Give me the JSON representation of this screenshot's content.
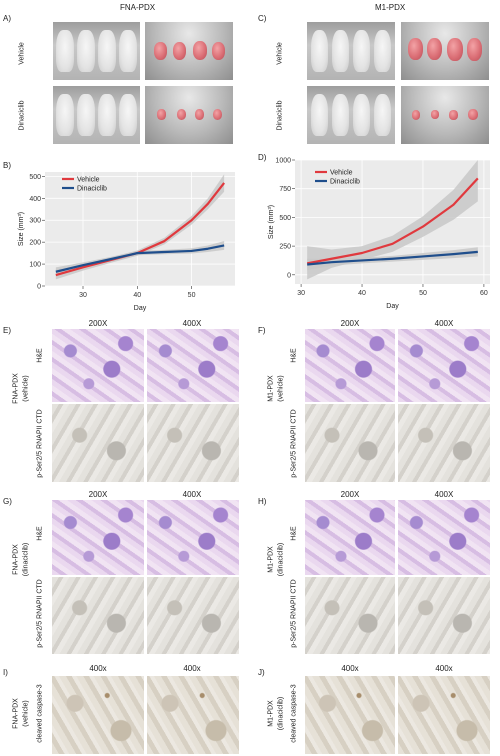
{
  "panels": {
    "A": "A)",
    "B": "B)",
    "C": "C)",
    "D": "D)",
    "E": "E)",
    "F": "F)",
    "G": "G)",
    "H": "H)",
    "I": "I)",
    "J": "J)"
  },
  "titles": {
    "left": "FNA-PDX",
    "right": "M1-PDX"
  },
  "row_labels": {
    "vehicle": "Vehicle",
    "dinaciclib": "Dinaciclib"
  },
  "mag": {
    "m200": "200X",
    "m400": "400X",
    "m400_lower": "400x"
  },
  "stain_labels": {
    "he": "H&E",
    "rnapii": "p-Ser2/5 RNAPII CTD",
    "caspase": "cleaved caspase-3",
    "fna_vehicle": "FNA-PDX",
    "fna_vehicle_sub": "(vehicle)",
    "m1_vehicle": "M1-PDX",
    "m1_vehicle_sub": "(vehicle)",
    "fna_dina_sub": "(dinaciclib)",
    "m1_dina_sub": "(dinaciclib)"
  },
  "colors": {
    "vehicle": "#e0393e",
    "dinaciclib": "#1f4e8c",
    "band": "#c8c8c8"
  },
  "chart_data": [
    {
      "type": "line",
      "panel": "B",
      "xlabel": "Day",
      "ylabel": "Size (mm³)",
      "xlim": [
        23,
        58
      ],
      "ylim": [
        0,
        520
      ],
      "xticks": [
        30,
        40,
        50
      ],
      "yticks": [
        0,
        100,
        200,
        300,
        400,
        500
      ],
      "legend_position": "top-left",
      "grid": true,
      "series": [
        {
          "name": "Vehicle",
          "color": "#e0393e",
          "x": [
            25,
            30,
            35,
            40,
            45,
            50,
            53,
            56
          ],
          "y": [
            50,
            85,
            118,
            150,
            205,
            300,
            375,
            470
          ],
          "band": [
            [
              30,
              75
            ],
            [
              70,
              100
            ],
            [
              105,
              130
            ],
            [
              138,
              162
            ],
            [
              190,
              220
            ],
            [
              280,
              320
            ],
            [
              350,
              400
            ],
            [
              430,
              510
            ]
          ]
        },
        {
          "name": "Dinaciclib",
          "color": "#1f4e8c",
          "x": [
            25,
            30,
            35,
            40,
            45,
            50,
            53,
            56
          ],
          "y": [
            65,
            95,
            122,
            150,
            155,
            160,
            170,
            185
          ],
          "band": [
            [
              45,
              85
            ],
            [
              82,
              108
            ],
            [
              112,
              132
            ],
            [
              140,
              160
            ],
            [
              145,
              165
            ],
            [
              148,
              172
            ],
            [
              155,
              185
            ],
            [
              165,
              205
            ]
          ]
        }
      ]
    },
    {
      "type": "line",
      "panel": "D",
      "xlabel": "Day",
      "ylabel": "Size (mm³)",
      "xlim": [
        29,
        61
      ],
      "ylim": [
        -80,
        1000
      ],
      "xticks": [
        30,
        40,
        50,
        60
      ],
      "yticks": [
        0,
        250,
        500,
        750,
        1000
      ],
      "legend_position": "top-left",
      "grid": true,
      "series": [
        {
          "name": "Vehicle",
          "color": "#e0393e",
          "x": [
            31,
            35,
            40,
            45,
            50,
            55,
            59
          ],
          "y": [
            100,
            140,
            190,
            270,
            420,
            610,
            840
          ],
          "band": [
            [
              -40,
              250
            ],
            [
              60,
              220
            ],
            [
              130,
              250
            ],
            [
              200,
              340
            ],
            [
              330,
              510
            ],
            [
              480,
              740
            ],
            [
              640,
              1000
            ]
          ]
        },
        {
          "name": "Dinaciclib",
          "color": "#1f4e8c",
          "x": [
            31,
            35,
            40,
            45,
            50,
            55,
            59
          ],
          "y": [
            90,
            110,
            125,
            140,
            160,
            180,
            200
          ],
          "band": [
            [
              40,
              140
            ],
            [
              80,
              140
            ],
            [
              100,
              150
            ],
            [
              115,
              165
            ],
            [
              130,
              190
            ],
            [
              145,
              215
            ],
            [
              160,
              240
            ]
          ]
        }
      ]
    }
  ]
}
